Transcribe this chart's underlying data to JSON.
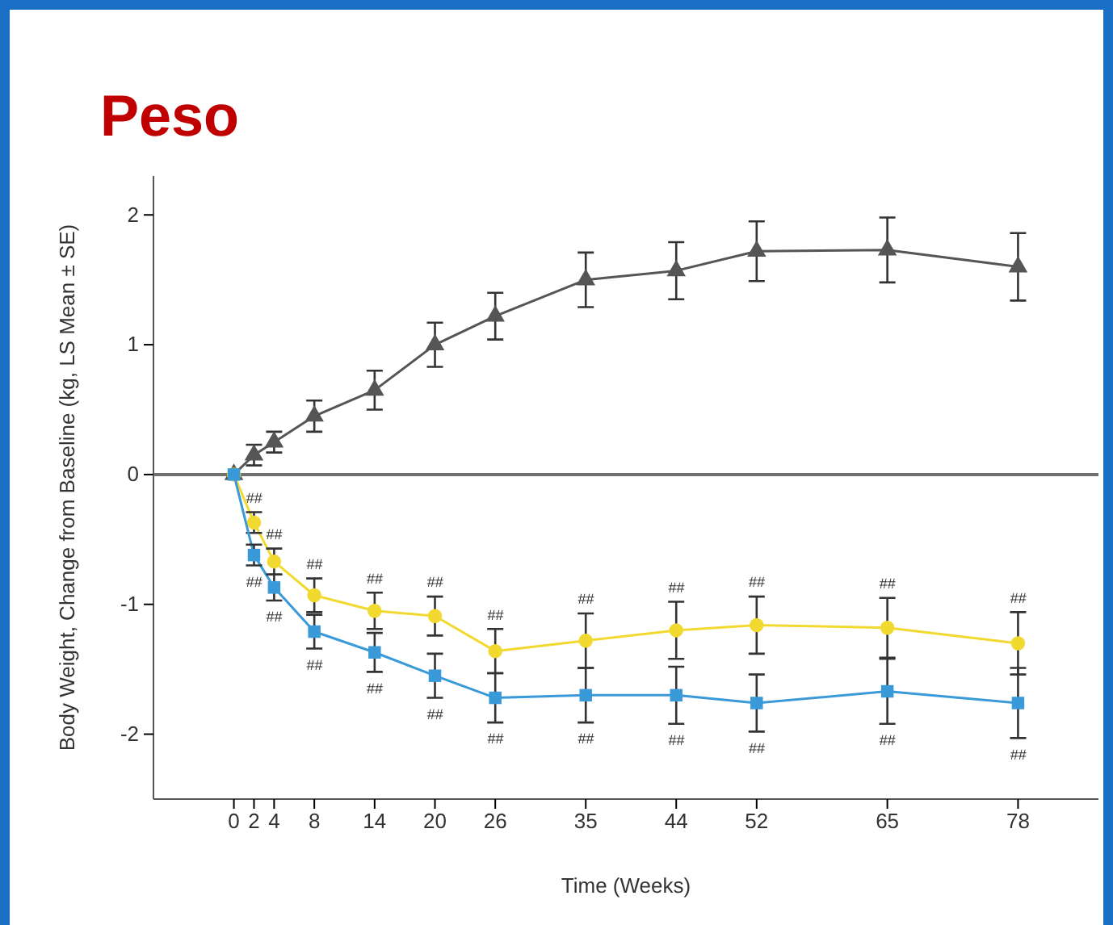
{
  "chart_data": {
    "type": "line",
    "title": "Peso",
    "xlabel": "Time (Weeks)",
    "ylabel": "Body Weight, Change from Baseline (kg, LS Mean ± SE)",
    "xlim": [
      -8,
      86
    ],
    "xticks": [
      0,
      2,
      4,
      8,
      14,
      20,
      26,
      35,
      44,
      52,
      65,
      78
    ],
    "ylim": [
      -2.5,
      2.3
    ],
    "yticks": [
      -2,
      -1,
      0,
      1,
      2
    ],
    "grid": false,
    "ref_lines": [
      {
        "axis": "y",
        "value": 0,
        "color": "#707070"
      }
    ],
    "x": [
      0,
      2,
      4,
      8,
      14,
      20,
      26,
      35,
      44,
      52,
      65,
      78
    ],
    "series": [
      {
        "color": "#555555",
        "marker": "triangle",
        "values": [
          0,
          0.15,
          0.25,
          0.45,
          0.65,
          1.0,
          1.22,
          1.5,
          1.57,
          1.72,
          1.73,
          1.6
        ],
        "errors": [
          null,
          0.08,
          0.08,
          0.12,
          0.15,
          0.17,
          0.18,
          0.21,
          0.22,
          0.23,
          0.25,
          0.26
        ]
      },
      {
        "color": "#f2d930",
        "marker": "circle",
        "values": [
          0,
          -0.37,
          -0.67,
          -0.93,
          -1.05,
          -1.09,
          -1.36,
          -1.28,
          -1.2,
          -1.16,
          -1.18,
          -1.3
        ],
        "errors": [
          null,
          0.08,
          0.1,
          0.13,
          0.14,
          0.15,
          0.17,
          0.21,
          0.22,
          0.22,
          0.23,
          0.24
        ]
      },
      {
        "color": "#3a9ad9",
        "marker": "square",
        "values": [
          0,
          -0.62,
          -0.87,
          -1.21,
          -1.37,
          -1.55,
          -1.72,
          -1.7,
          -1.7,
          -1.76,
          -1.67,
          -1.76
        ],
        "errors": [
          null,
          0.08,
          0.1,
          0.13,
          0.15,
          0.17,
          0.19,
          0.21,
          0.22,
          0.22,
          0.25,
          0.27
        ]
      }
    ],
    "annotations": [
      {
        "text": "##",
        "x": 2,
        "y": -0.37
      },
      {
        "text": "##",
        "x": 4,
        "y": -0.67
      },
      {
        "text": "##",
        "x": 8,
        "y": -0.93
      },
      {
        "text": "##",
        "x": 14,
        "y": -1.05
      },
      {
        "text": "##",
        "x": 20,
        "y": -1.09
      },
      {
        "text": "##",
        "x": 26,
        "y": -1.36
      },
      {
        "text": "##",
        "x": 35,
        "y": -1.28
      },
      {
        "text": "##",
        "x": 44,
        "y": -1.2
      },
      {
        "text": "##",
        "x": 52,
        "y": -1.16
      },
      {
        "text": "##",
        "x": 65,
        "y": -1.18
      },
      {
        "text": "##",
        "x": 78,
        "y": -1.3
      },
      {
        "text": "##",
        "x": 2,
        "y": -0.62
      },
      {
        "text": "##",
        "x": 4,
        "y": -0.87
      },
      {
        "text": "##",
        "x": 8,
        "y": -1.21
      },
      {
        "text": "##",
        "x": 14,
        "y": -1.37
      },
      {
        "text": "##",
        "x": 20,
        "y": -1.55
      },
      {
        "text": "##",
        "x": 26,
        "y": -1.72
      },
      {
        "text": "##",
        "x": 35,
        "y": -1.7
      },
      {
        "text": "##",
        "x": 44,
        "y": -1.7
      },
      {
        "text": "##",
        "x": 52,
        "y": -1.76
      },
      {
        "text": "##",
        "x": 65,
        "y": -1.67
      },
      {
        "text": "##",
        "x": 78,
        "y": -1.76
      }
    ]
  }
}
